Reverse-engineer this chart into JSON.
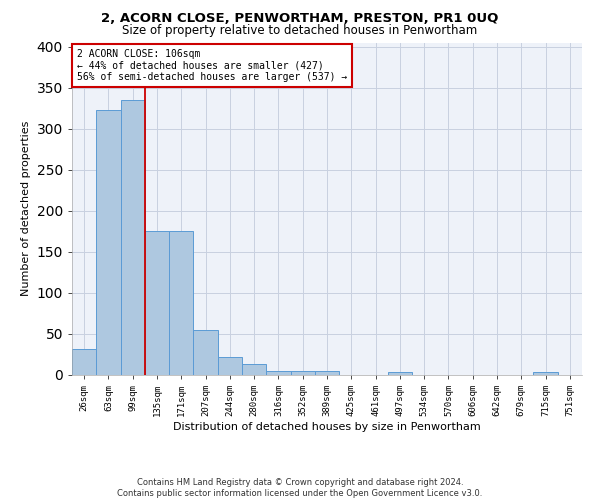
{
  "title1": "2, ACORN CLOSE, PENWORTHAM, PRESTON, PR1 0UQ",
  "title2": "Size of property relative to detached houses in Penwortham",
  "xlabel": "Distribution of detached houses by size in Penwortham",
  "ylabel": "Number of detached properties",
  "footnote1": "Contains HM Land Registry data © Crown copyright and database right 2024.",
  "footnote2": "Contains public sector information licensed under the Open Government Licence v3.0.",
  "bin_labels": [
    "26sqm",
    "63sqm",
    "99sqm",
    "135sqm",
    "171sqm",
    "207sqm",
    "244sqm",
    "280sqm",
    "316sqm",
    "352sqm",
    "389sqm",
    "425sqm",
    "461sqm",
    "497sqm",
    "534sqm",
    "570sqm",
    "606sqm",
    "642sqm",
    "679sqm",
    "715sqm",
    "751sqm"
  ],
  "bar_heights": [
    32,
    323,
    335,
    176,
    176,
    55,
    22,
    13,
    5,
    5,
    5,
    0,
    0,
    4,
    0,
    0,
    0,
    0,
    0,
    4,
    0
  ],
  "bar_color": "#aec8e0",
  "bar_edge_color": "#5b9bd5",
  "grid_color": "#c8d0e0",
  "background_color": "#eef2f9",
  "property_label": "2 ACORN CLOSE: 106sqm",
  "annotation_line1": "← 44% of detached houses are smaller (427)",
  "annotation_line2": "56% of semi-detached houses are larger (537) →",
  "vline_color": "#cc0000",
  "vline_x": 2.5,
  "annotation_box_color": "#ffffff",
  "annotation_box_edge": "#cc0000",
  "ylim": [
    0,
    405
  ],
  "yticks": [
    0,
    50,
    100,
    150,
    200,
    250,
    300,
    350,
    400
  ]
}
